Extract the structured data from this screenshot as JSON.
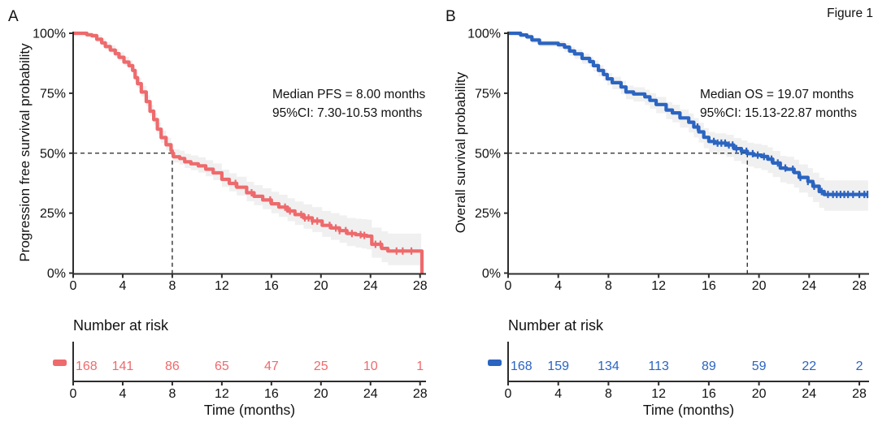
{
  "figure_label": "Figure 1",
  "xlabel": "Time (months)",
  "risk_header": "Number at risk",
  "y_ticks": [
    "0%",
    "25%",
    "50%",
    "75%",
    "100%"
  ],
  "x_ticks": [
    0,
    4,
    8,
    12,
    16,
    20,
    24,
    28
  ],
  "chart_data": [
    {
      "type": "km_curve",
      "panel_letter": "A",
      "ylabel": "Progression free survival probability",
      "annotation_line1": "Median PFS = 8.00 months",
      "annotation_line2": "95%CI: 7.30-10.53 months",
      "color": "#EE6A6C",
      "median_months": 8.0,
      "ci_low_months": 7.3,
      "ci_high_months": 10.53,
      "xlim": [
        0,
        28.4
      ],
      "ylim": [
        0,
        100
      ],
      "steps": [
        [
          0,
          100
        ],
        [
          0.8,
          100
        ],
        [
          1.1,
          99.4
        ],
        [
          1.5,
          99
        ],
        [
          1.9,
          97.5
        ],
        [
          2.3,
          96
        ],
        [
          2.6,
          94.5
        ],
        [
          3,
          93
        ],
        [
          3.4,
          91.5
        ],
        [
          3.7,
          90
        ],
        [
          4.1,
          88
        ],
        [
          4.5,
          86.5
        ],
        [
          4.8,
          84.5
        ],
        [
          5,
          81.5
        ],
        [
          5.2,
          79
        ],
        [
          5.5,
          75.5
        ],
        [
          5.9,
          71.5
        ],
        [
          6.2,
          67.5
        ],
        [
          6.5,
          64
        ],
        [
          6.8,
          60
        ],
        [
          7.1,
          56.5
        ],
        [
          7.5,
          53.5
        ],
        [
          7.9,
          51
        ],
        [
          8,
          50
        ],
        [
          8.1,
          48.5
        ],
        [
          8.6,
          47.8
        ],
        [
          9,
          46.4
        ],
        [
          9.5,
          45.6
        ],
        [
          10.1,
          44.7
        ],
        [
          10.7,
          43.3
        ],
        [
          11.3,
          41.8
        ],
        [
          12,
          39.1
        ],
        [
          12.6,
          37.4
        ],
        [
          13.2,
          35.8
        ],
        [
          14,
          33.5
        ],
        [
          14.6,
          32
        ],
        [
          15.3,
          30.5
        ],
        [
          16,
          28.9
        ],
        [
          16.6,
          27.5
        ],
        [
          17.3,
          25.9
        ],
        [
          17.9,
          24.4
        ],
        [
          18.6,
          23
        ],
        [
          19.3,
          21.7
        ],
        [
          20.1,
          19.9
        ],
        [
          20.8,
          18.8
        ],
        [
          21.5,
          17.7
        ],
        [
          22.1,
          16.5
        ],
        [
          22.8,
          16
        ],
        [
          23.3,
          15.7
        ],
        [
          23.7,
          15.4
        ],
        [
          24.1,
          12
        ],
        [
          24.9,
          10.3
        ],
        [
          25.4,
          9.2
        ],
        [
          28.1,
          9.2
        ],
        [
          28.15,
          0
        ]
      ],
      "censor_times": [
        13.1,
        14.4,
        15.9,
        17.1,
        17.5,
        18.4,
        18.7,
        19,
        19.3,
        19.7,
        20.7,
        21.2,
        21.5,
        22,
        22.5,
        23.2,
        23.5,
        24.4,
        24.8,
        26.1,
        26.6,
        27.3
      ],
      "at_risk_times": [
        0,
        4,
        8,
        12,
        16,
        20,
        24,
        28
      ],
      "at_risk_counts": [
        "168",
        "141",
        "86",
        "65",
        "47",
        "25",
        "10",
        "1"
      ]
    },
    {
      "type": "km_curve",
      "panel_letter": "B",
      "ylabel": "Overall survival probability",
      "annotation_line1": "Median OS = 19.07 months",
      "annotation_line2": "95%CI: 15.13-22.87 months",
      "color": "#2B64C1",
      "median_months": 19.07,
      "ci_low_months": 15.13,
      "ci_high_months": 22.87,
      "xlim": [
        0,
        28.8
      ],
      "ylim": [
        0,
        100
      ],
      "steps": [
        [
          0,
          100
        ],
        [
          0.7,
          100
        ],
        [
          1,
          99.3
        ],
        [
          1.5,
          98.5
        ],
        [
          1.9,
          97.2
        ],
        [
          2.5,
          95.8
        ],
        [
          4,
          95.2
        ],
        [
          4.5,
          94.2
        ],
        [
          4.9,
          92.6
        ],
        [
          5.3,
          91.4
        ],
        [
          5.9,
          89.5
        ],
        [
          6.5,
          88.2
        ],
        [
          6.8,
          86.5
        ],
        [
          7.2,
          84.5
        ],
        [
          7.6,
          82.8
        ],
        [
          7.9,
          81
        ],
        [
          8.3,
          79.4
        ],
        [
          9,
          77.6
        ],
        [
          9.4,
          75.5
        ],
        [
          10,
          74.7
        ],
        [
          10.9,
          73.5
        ],
        [
          11.3,
          72
        ],
        [
          11.8,
          70.3
        ],
        [
          12.6,
          68
        ],
        [
          13.1,
          66.8
        ],
        [
          13.7,
          64.7
        ],
        [
          14.4,
          62.9
        ],
        [
          14.8,
          60.9
        ],
        [
          15.2,
          58.9
        ],
        [
          15.6,
          56.6
        ],
        [
          16,
          54.9
        ],
        [
          16.5,
          54.2
        ],
        [
          17.4,
          53.4
        ],
        [
          18,
          51.9
        ],
        [
          18.6,
          50.8
        ],
        [
          19.07,
          49.8
        ],
        [
          19.6,
          49.2
        ],
        [
          20.2,
          48.6
        ],
        [
          20.7,
          47.5
        ],
        [
          21.1,
          45.9
        ],
        [
          21.7,
          43.8
        ],
        [
          22.2,
          43.3
        ],
        [
          22.8,
          41.9
        ],
        [
          23.2,
          39.9
        ],
        [
          23.9,
          38.2
        ],
        [
          24.3,
          36.2
        ],
        [
          24.8,
          34
        ],
        [
          25.2,
          32.8
        ],
        [
          28.7,
          32.8
        ]
      ],
      "censor_times": [
        15.1,
        16.4,
        16.7,
        17,
        17.3,
        17.6,
        17.9,
        18.2,
        18.6,
        19,
        19.5,
        19.9,
        20.4,
        21,
        21.5,
        22.1,
        22.7,
        23.3,
        23.9,
        24.4,
        25,
        25.5,
        25.9,
        26.2,
        26.5,
        26.8,
        27.1,
        27.5,
        28,
        28.4,
        28.65
      ],
      "at_risk_times": [
        0,
        4,
        8,
        12,
        16,
        20,
        24,
        28
      ],
      "at_risk_counts": [
        "168",
        "159",
        "134",
        "113",
        "89",
        "59",
        "22",
        "2"
      ]
    }
  ]
}
